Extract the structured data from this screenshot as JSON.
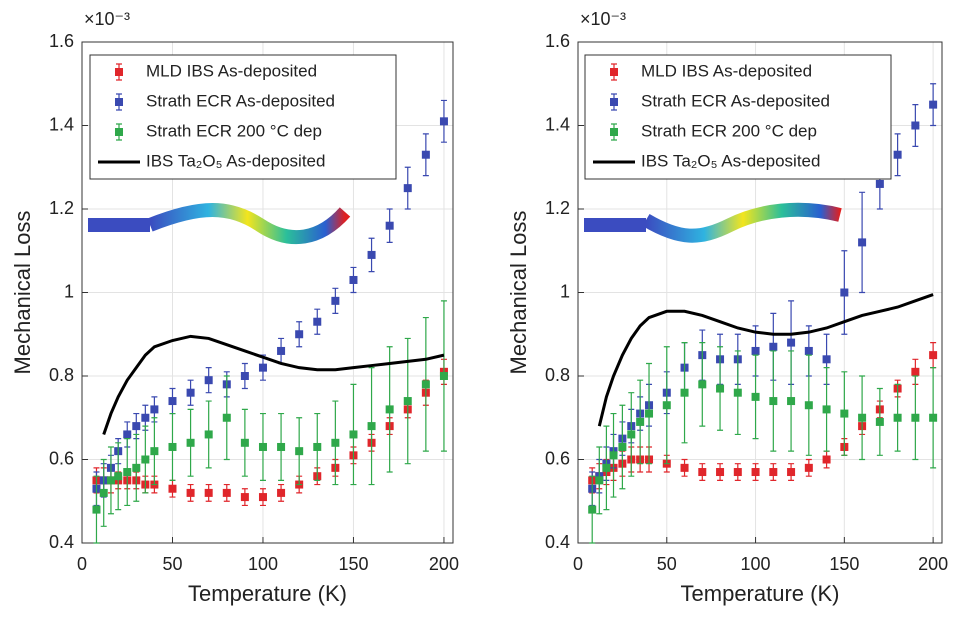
{
  "chart_data": [
    {
      "type": "errorbar",
      "x_label": "Temperature (K)",
      "y_label": "Mechanical Loss",
      "y_multiplier": "×10⁻³",
      "xlim": [
        0,
        205
      ],
      "ylim": [
        0.4,
        1.6
      ],
      "xticks": [
        0,
        50,
        100,
        150,
        200
      ],
      "yticks": [
        0.4,
        0.6,
        0.8,
        1,
        1.2,
        1.4,
        1.6
      ],
      "grid": true,
      "x": [
        8,
        12,
        16,
        20,
        25,
        30,
        35,
        40,
        50,
        60,
        70,
        80,
        90,
        100,
        110,
        120,
        130,
        140,
        150,
        160,
        170,
        180,
        190,
        200
      ],
      "series": [
        {
          "name": "MLD IBS As-deposited",
          "color": "#e0262b",
          "style": "errorbar",
          "values": [
            0.55,
            0.55,
            0.55,
            0.55,
            0.55,
            0.55,
            0.54,
            0.54,
            0.53,
            0.52,
            0.52,
            0.52,
            0.51,
            0.51,
            0.52,
            0.54,
            0.56,
            0.58,
            0.61,
            0.64,
            0.68,
            0.72,
            0.76,
            0.81
          ],
          "errors": [
            0.03,
            0.03,
            0.03,
            0.02,
            0.02,
            0.02,
            0.02,
            0.02,
            0.02,
            0.02,
            0.02,
            0.02,
            0.02,
            0.02,
            0.02,
            0.02,
            0.02,
            0.02,
            0.02,
            0.02,
            0.02,
            0.02,
            0.03,
            0.03
          ]
        },
        {
          "name": "Strath ECR As-deposited",
          "color": "#3a49b0",
          "style": "errorbar",
          "values": [
            0.53,
            0.55,
            0.58,
            0.62,
            0.66,
            0.68,
            0.7,
            0.72,
            0.74,
            0.76,
            0.79,
            0.78,
            0.8,
            0.82,
            0.86,
            0.9,
            0.93,
            0.98,
            1.03,
            1.09,
            1.16,
            1.25,
            1.33,
            1.41
          ],
          "errors": [
            0.04,
            0.04,
            0.03,
            0.03,
            0.03,
            0.03,
            0.03,
            0.03,
            0.03,
            0.03,
            0.03,
            0.03,
            0.03,
            0.03,
            0.03,
            0.03,
            0.03,
            0.03,
            0.03,
            0.04,
            0.04,
            0.05,
            0.05,
            0.05
          ]
        },
        {
          "name": "Strath ECR 200 °C dep",
          "color": "#2fa84a",
          "style": "errorbar",
          "values": [
            0.48,
            0.52,
            0.55,
            0.56,
            0.57,
            0.58,
            0.6,
            0.62,
            0.63,
            0.64,
            0.66,
            0.7,
            0.64,
            0.63,
            0.63,
            0.62,
            0.63,
            0.64,
            0.66,
            0.68,
            0.72,
            0.74,
            0.78,
            0.8
          ],
          "errors": [
            0.08,
            0.08,
            0.08,
            0.08,
            0.08,
            0.08,
            0.08,
            0.08,
            0.08,
            0.08,
            0.08,
            0.1,
            0.08,
            0.08,
            0.08,
            0.08,
            0.08,
            0.1,
            0.12,
            0.14,
            0.15,
            0.15,
            0.16,
            0.18
          ]
        },
        {
          "name": "IBS Ta₂O₅ As-deposited",
          "color": "#000000",
          "style": "line",
          "values": [
            null,
            0.66,
            0.71,
            0.75,
            0.79,
            0.82,
            0.85,
            0.87,
            0.885,
            0.895,
            0.89,
            0.875,
            0.86,
            0.845,
            0.83,
            0.82,
            0.815,
            0.815,
            0.82,
            0.825,
            0.83,
            0.835,
            0.84,
            0.85
          ]
        }
      ]
    },
    {
      "type": "errorbar",
      "x_label": "Temperature (K)",
      "y_label": "Mechanical Loss",
      "y_multiplier": "×10⁻³",
      "xlim": [
        0,
        205
      ],
      "ylim": [
        0.4,
        1.6
      ],
      "xticks": [
        0,
        50,
        100,
        150,
        200
      ],
      "yticks": [
        0.4,
        0.6,
        0.8,
        1,
        1.2,
        1.4,
        1.6
      ],
      "grid": true,
      "x": [
        8,
        12,
        16,
        20,
        25,
        30,
        35,
        40,
        50,
        60,
        70,
        80,
        90,
        100,
        110,
        120,
        130,
        140,
        150,
        160,
        170,
        180,
        190,
        200
      ],
      "series": [
        {
          "name": "MLD IBS As-deposited",
          "color": "#e0262b",
          "style": "errorbar",
          "values": [
            0.55,
            0.56,
            0.57,
            0.58,
            0.59,
            0.6,
            0.6,
            0.6,
            0.59,
            0.58,
            0.57,
            0.57,
            0.57,
            0.57,
            0.57,
            0.57,
            0.58,
            0.6,
            0.63,
            0.68,
            0.72,
            0.77,
            0.81,
            0.85
          ],
          "errors": [
            0.03,
            0.03,
            0.03,
            0.03,
            0.03,
            0.03,
            0.03,
            0.03,
            0.02,
            0.02,
            0.02,
            0.02,
            0.02,
            0.02,
            0.02,
            0.02,
            0.02,
            0.02,
            0.02,
            0.02,
            0.02,
            0.02,
            0.03,
            0.03
          ]
        },
        {
          "name": "Strath ECR As-deposited",
          "color": "#3a49b0",
          "style": "errorbar",
          "values": [
            0.53,
            0.56,
            0.59,
            0.62,
            0.65,
            0.68,
            0.71,
            0.73,
            0.76,
            0.82,
            0.85,
            0.84,
            0.84,
            0.86,
            0.87,
            0.88,
            0.86,
            0.84,
            1,
            1.12,
            1.26,
            1.33,
            1.4,
            1.45
          ],
          "errors": [
            0.04,
            0.04,
            0.04,
            0.04,
            0.04,
            0.04,
            0.04,
            0.05,
            0.05,
            0.06,
            0.06,
            0.06,
            0.06,
            0.06,
            0.08,
            0.1,
            0.06,
            0.06,
            0.1,
            0.12,
            0.06,
            0.05,
            0.05,
            0.05
          ]
        },
        {
          "name": "Strath ECR 200 °C dep",
          "color": "#2fa84a",
          "style": "errorbar",
          "values": [
            0.48,
            0.55,
            0.58,
            0.61,
            0.63,
            0.66,
            0.69,
            0.71,
            0.73,
            0.76,
            0.78,
            0.77,
            0.76,
            0.75,
            0.74,
            0.74,
            0.73,
            0.72,
            0.71,
            0.7,
            0.69,
            0.7,
            0.7,
            0.7
          ],
          "errors": [
            0.08,
            0.08,
            0.1,
            0.1,
            0.1,
            0.1,
            0.1,
            0.12,
            0.14,
            0.12,
            0.1,
            0.1,
            0.1,
            0.1,
            0.12,
            0.12,
            0.12,
            0.1,
            0.1,
            0.1,
            0.08,
            0.08,
            0.1,
            0.12
          ]
        },
        {
          "name": "IBS Ta₂O₅ As-deposited",
          "color": "#000000",
          "style": "line",
          "values": [
            null,
            0.68,
            0.75,
            0.8,
            0.85,
            0.89,
            0.92,
            0.94,
            0.955,
            0.955,
            0.945,
            0.93,
            0.915,
            0.905,
            0.9,
            0.9,
            0.905,
            0.915,
            0.93,
            0.945,
            0.955,
            0.965,
            0.98,
            0.995
          ]
        }
      ]
    }
  ]
}
